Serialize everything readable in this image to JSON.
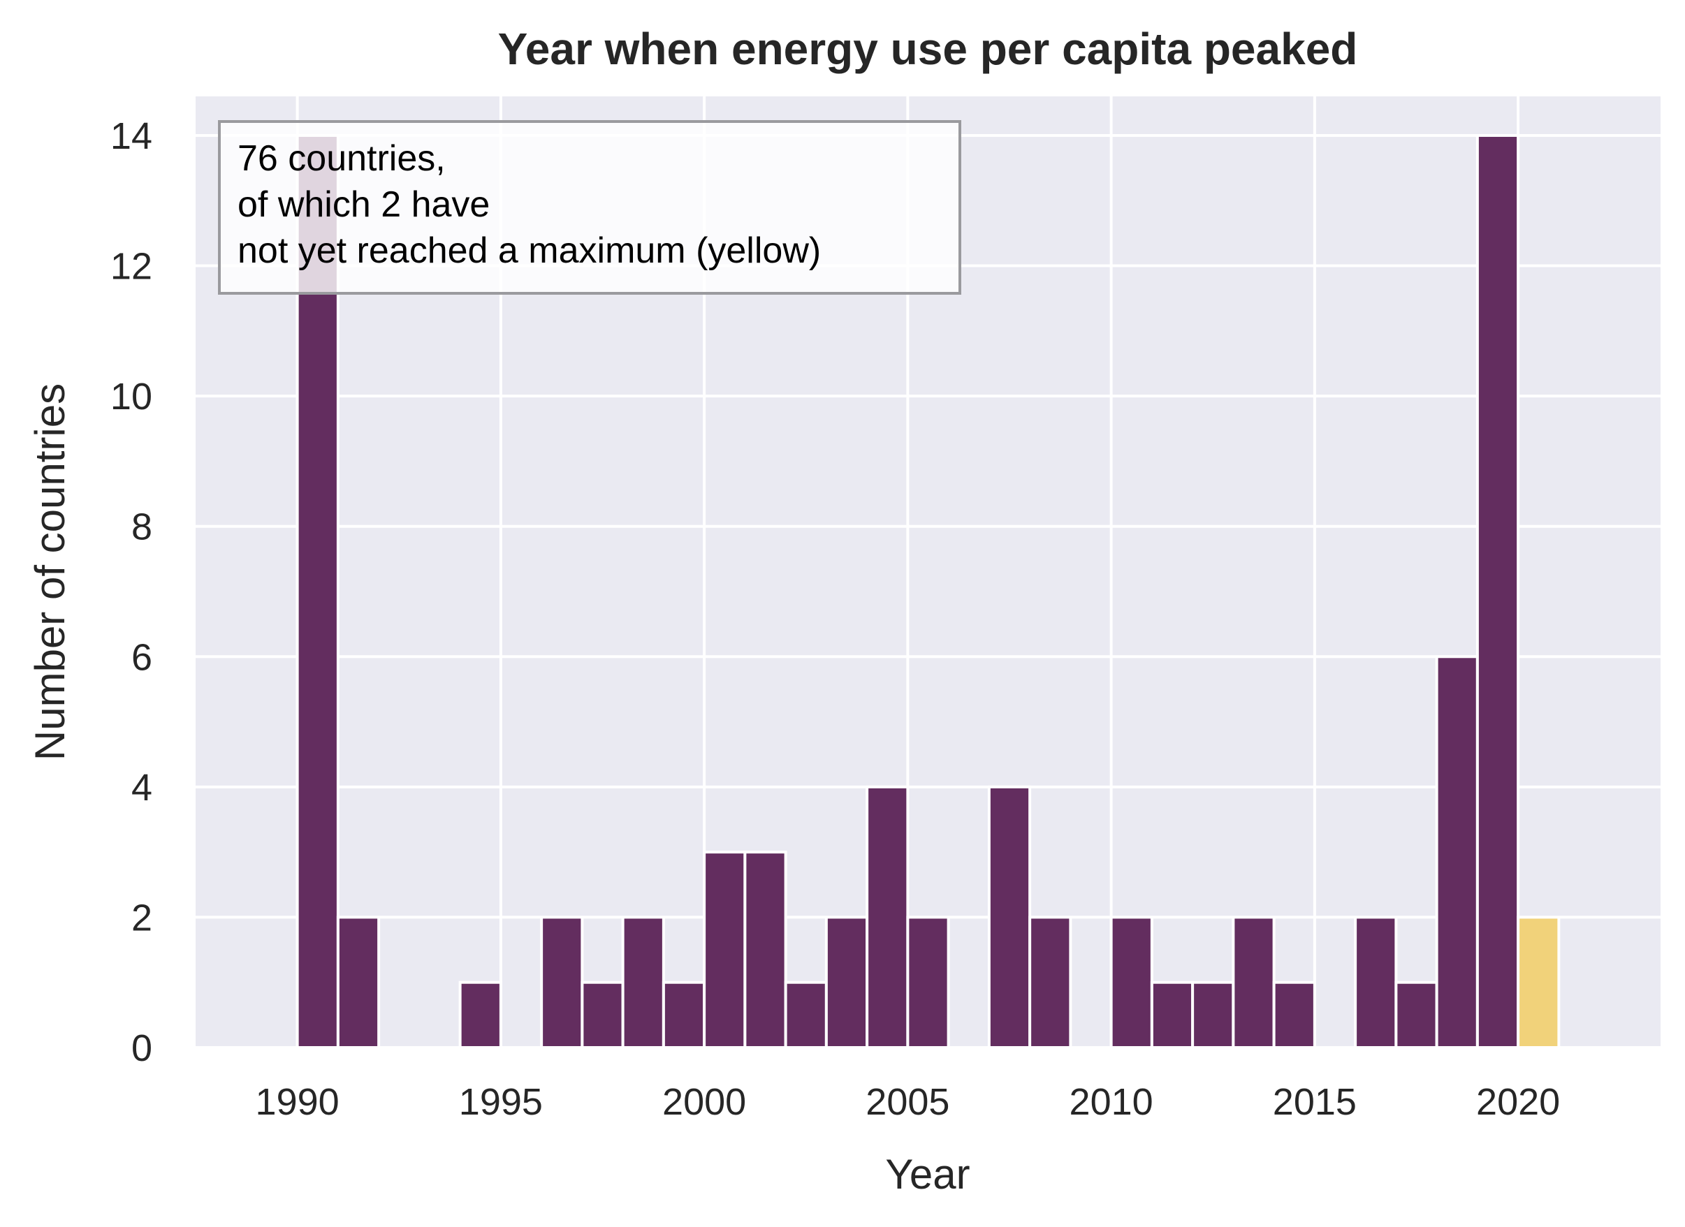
{
  "chart_data": {
    "type": "bar",
    "title": "Year when energy use per capita peaked",
    "xlabel": "Year",
    "ylabel": "Number of countries",
    "xlim": [
      1987.5,
      2023.5
    ],
    "ylim": [
      0,
      14.6
    ],
    "xticks": [
      1990,
      1995,
      2000,
      2005,
      2010,
      2015,
      2020
    ],
    "yticks": [
      0,
      2,
      4,
      6,
      8,
      10,
      12,
      14
    ],
    "grid": true,
    "bar_width": 1,
    "bars": [
      {
        "year": 1990,
        "value": 14,
        "status": "peaked"
      },
      {
        "year": 1991,
        "value": 2,
        "status": "peaked"
      },
      {
        "year": 1994,
        "value": 1,
        "status": "peaked"
      },
      {
        "year": 1996,
        "value": 2,
        "status": "peaked"
      },
      {
        "year": 1997,
        "value": 1,
        "status": "peaked"
      },
      {
        "year": 1998,
        "value": 2,
        "status": "peaked"
      },
      {
        "year": 1999,
        "value": 1,
        "status": "peaked"
      },
      {
        "year": 2000,
        "value": 3,
        "status": "peaked"
      },
      {
        "year": 2001,
        "value": 3,
        "status": "peaked"
      },
      {
        "year": 2002,
        "value": 1,
        "status": "peaked"
      },
      {
        "year": 2003,
        "value": 2,
        "status": "peaked"
      },
      {
        "year": 2004,
        "value": 4,
        "status": "peaked"
      },
      {
        "year": 2005,
        "value": 2,
        "status": "peaked"
      },
      {
        "year": 2007,
        "value": 4,
        "status": "peaked"
      },
      {
        "year": 2008,
        "value": 2,
        "status": "peaked"
      },
      {
        "year": 2010,
        "value": 2,
        "status": "peaked"
      },
      {
        "year": 2011,
        "value": 1,
        "status": "peaked"
      },
      {
        "year": 2012,
        "value": 1,
        "status": "peaked"
      },
      {
        "year": 2013,
        "value": 2,
        "status": "peaked"
      },
      {
        "year": 2014,
        "value": 1,
        "status": "peaked"
      },
      {
        "year": 2016,
        "value": 2,
        "status": "peaked"
      },
      {
        "year": 2017,
        "value": 1,
        "status": "peaked"
      },
      {
        "year": 2018,
        "value": 6,
        "status": "peaked"
      },
      {
        "year": 2019,
        "value": 14,
        "status": "peaked"
      },
      {
        "year": 2020,
        "value": 2,
        "status": "not_yet_peaked"
      }
    ],
    "annotation": {
      "lines": [
        "76 countries,",
        "of which 2 have",
        "not yet reached a maximum (yellow)"
      ],
      "placement": "top-left"
    },
    "colors": {
      "peaked": "#632d5f",
      "not_yet_peaked": "#f1d27a",
      "plot_background": "#eaeaf2",
      "grid": "#ffffff"
    }
  }
}
